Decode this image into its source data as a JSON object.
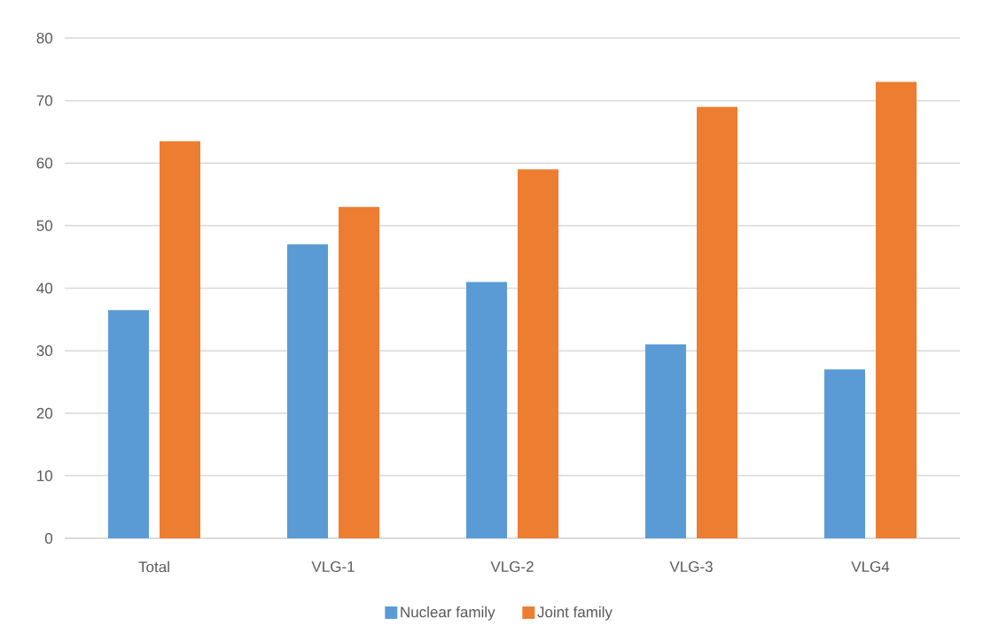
{
  "chart_data": {
    "type": "bar",
    "categories": [
      "Total",
      "VLG-1",
      "VLG-2",
      "VLG-3",
      "VLG4"
    ],
    "series": [
      {
        "name": "Nuclear family",
        "color": "#5b9bd5",
        "values": [
          36.5,
          47,
          41,
          31,
          27
        ]
      },
      {
        "name": "Joint family",
        "color": "#ed7d31",
        "values": [
          63.5,
          53,
          59,
          69,
          73
        ]
      }
    ],
    "ylim": [
      0,
      80
    ],
    "yticks": [
      0,
      10,
      20,
      30,
      40,
      50,
      60,
      70,
      80
    ],
    "grid": "y",
    "legend": "bottom"
  }
}
